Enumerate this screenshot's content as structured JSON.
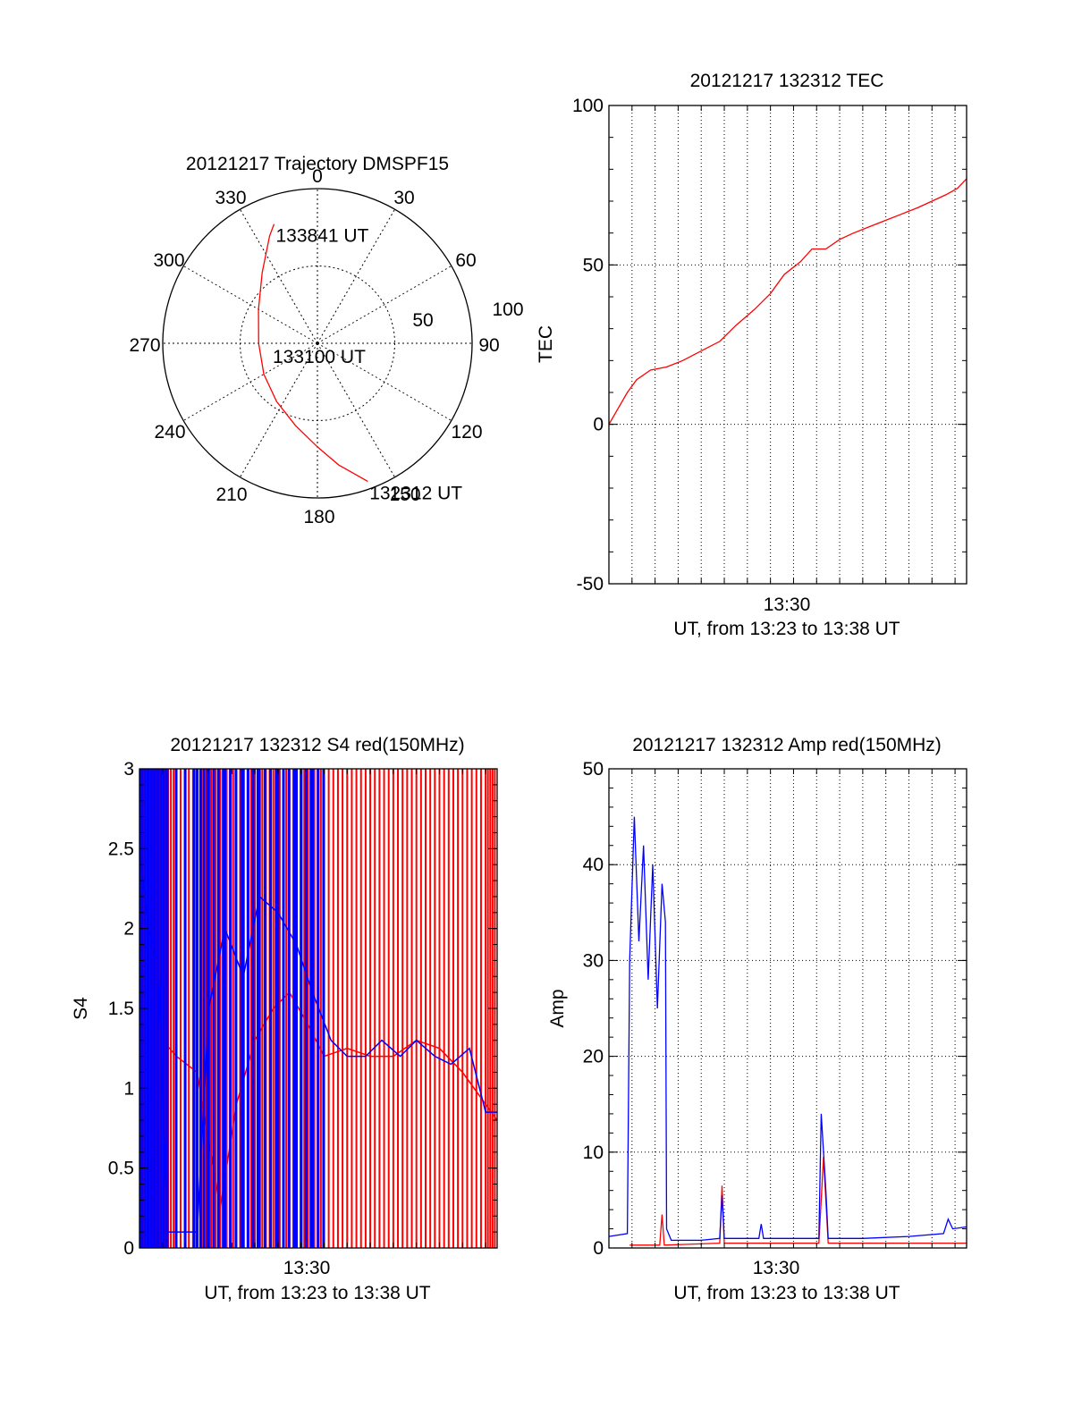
{
  "chart_data": [
    {
      "type": "polar",
      "title": "20121217 Trajectory DMSPF15",
      "azimuth_labels": [
        "0",
        "30",
        "60",
        "90",
        "120",
        "150",
        "180",
        "210",
        "240",
        "270",
        "300",
        "330"
      ],
      "radial_labels": [
        "50",
        "100"
      ],
      "grid": true,
      "series": [
        {
          "color": "#ff0000",
          "points": [
            {
              "az": 160,
              "r": 95
            },
            {
              "az": 170,
              "r": 80
            },
            {
              "az": 180,
              "r": 67
            },
            {
              "az": 195,
              "r": 55
            },
            {
              "az": 215,
              "r": 46
            },
            {
              "az": 240,
              "r": 40
            },
            {
              "az": 270,
              "r": 38
            },
            {
              "az": 300,
              "r": 44
            },
            {
              "az": 322,
              "r": 58
            },
            {
              "az": 336,
              "r": 76
            },
            {
              "az": 340,
              "r": 82
            }
          ]
        }
      ],
      "annotations": [
        {
          "text": "133841 UT",
          "az": 340,
          "r": 82
        },
        {
          "text": "133100 UT",
          "az": 0,
          "r": 0
        },
        {
          "text": "132312 UT",
          "az": 160,
          "r": 95
        }
      ]
    },
    {
      "type": "line",
      "title": "20121217 132312 TEC",
      "xlabel": "UT, from 13:23 to 13:38 UT",
      "ylabel": "TEC",
      "x_tick_labels": [
        "13:30"
      ],
      "xlim_minutes": [
        0,
        15.5
      ],
      "ylim": [
        -50,
        100
      ],
      "y_ticks": [
        -50,
        0,
        50,
        100
      ],
      "grid": true,
      "series": [
        {
          "color": "#ff0000",
          "points": [
            [
              0.0,
              0
            ],
            [
              0.4,
              5
            ],
            [
              0.8,
              10
            ],
            [
              1.2,
              14
            ],
            [
              1.8,
              17
            ],
            [
              2.5,
              18
            ],
            [
              3.2,
              20
            ],
            [
              4.0,
              23
            ],
            [
              4.8,
              26
            ],
            [
              5.5,
              31
            ],
            [
              6.3,
              36
            ],
            [
              7.0,
              41
            ],
            [
              7.6,
              47
            ],
            [
              8.3,
              51
            ],
            [
              8.8,
              55
            ],
            [
              9.4,
              55
            ],
            [
              10.0,
              58
            ],
            [
              10.6,
              60
            ],
            [
              11.3,
              62
            ],
            [
              12.0,
              64
            ],
            [
              12.7,
              66
            ],
            [
              13.4,
              68
            ],
            [
              14.0,
              70
            ],
            [
              14.6,
              72
            ],
            [
              15.1,
              74
            ],
            [
              15.5,
              77
            ]
          ]
        }
      ]
    },
    {
      "type": "line",
      "title": "20121217 132312 S4 red(150MHz)",
      "xlabel": "UT, from 13:23 to 13:38 UT",
      "ylabel": "S4",
      "x_tick_labels": [
        "13:30"
      ],
      "xlim_minutes": [
        0,
        15.5
      ],
      "ylim": [
        0,
        3
      ],
      "y_ticks": [
        0,
        0.5,
        1,
        1.5,
        2,
        2.5,
        3
      ],
      "grid": false,
      "series": [
        {
          "color": "#ff0000",
          "points": [
            [
              0.0,
              2.4
            ],
            [
              0.3,
              1.5
            ],
            [
              0.6,
              1.6
            ],
            [
              1.0,
              1.3
            ],
            [
              1.6,
              1.2
            ],
            [
              2.5,
              1.1
            ],
            [
              3.5,
              0.25
            ],
            [
              4.2,
              0.9
            ],
            [
              5.0,
              1.3
            ],
            [
              5.8,
              1.5
            ],
            [
              6.5,
              1.6
            ],
            [
              7.3,
              1.4
            ],
            [
              8.0,
              1.2
            ],
            [
              9.0,
              1.25
            ],
            [
              10.0,
              1.2
            ],
            [
              11.0,
              1.2
            ],
            [
              12.0,
              1.3
            ],
            [
              13.0,
              1.25
            ],
            [
              14.0,
              1.1
            ],
            [
              15.0,
              0.9
            ],
            [
              15.5,
              0.8
            ]
          ]
        },
        {
          "color": "#0000ff",
          "points": [
            [
              0.0,
              2.5
            ],
            [
              0.4,
              2.0
            ],
            [
              0.8,
              1.8
            ],
            [
              1.2,
              0.1
            ],
            [
              2.5,
              0.1
            ],
            [
              3.0,
              1.5
            ],
            [
              3.7,
              2.0
            ],
            [
              4.5,
              1.7
            ],
            [
              5.2,
              2.2
            ],
            [
              6.0,
              2.1
            ],
            [
              6.8,
              1.9
            ],
            [
              7.5,
              1.6
            ],
            [
              8.3,
              1.3
            ],
            [
              9.0,
              1.2
            ],
            [
              9.8,
              1.2
            ],
            [
              10.5,
              1.3
            ],
            [
              11.3,
              1.2
            ],
            [
              12.0,
              1.3
            ],
            [
              12.8,
              1.2
            ],
            [
              13.5,
              1.15
            ],
            [
              14.3,
              1.25
            ],
            [
              15.0,
              0.85
            ],
            [
              15.5,
              0.85
            ]
          ]
        }
      ]
    },
    {
      "type": "line",
      "title": "20121217 132312 Amp red(150MHz)",
      "xlabel": "UT, from 13:23 to 13:38 UT",
      "ylabel": "Amp",
      "x_tick_labels": [
        "13:30"
      ],
      "xlim_minutes": [
        0,
        15.5
      ],
      "ylim": [
        0,
        50
      ],
      "y_ticks": [
        0,
        10,
        20,
        30,
        40,
        50
      ],
      "grid": true,
      "series": [
        {
          "color": "#ff0000",
          "points": [
            [
              0.9,
              0.3
            ],
            [
              1.5,
              0.3
            ],
            [
              2.2,
              0.3
            ],
            [
              2.3,
              3.5
            ],
            [
              2.4,
              0.3
            ],
            [
              4.8,
              0.5
            ],
            [
              4.9,
              6.5
            ],
            [
              5.0,
              0.5
            ],
            [
              9.1,
              0.5
            ],
            [
              9.3,
              9.5
            ],
            [
              9.5,
              0.5
            ],
            [
              15.5,
              0.5
            ]
          ]
        },
        {
          "color": "#0000ff",
          "points": [
            [
              0.0,
              1.2
            ],
            [
              0.8,
              1.5
            ],
            [
              0.9,
              30
            ],
            [
              1.1,
              45
            ],
            [
              1.3,
              32
            ],
            [
              1.5,
              42
            ],
            [
              1.7,
              28
            ],
            [
              1.9,
              40
            ],
            [
              2.1,
              25
            ],
            [
              2.3,
              38
            ],
            [
              2.45,
              34
            ],
            [
              2.5,
              2
            ],
            [
              2.7,
              0.8
            ],
            [
              4.0,
              0.8
            ],
            [
              4.8,
              1.0
            ],
            [
              4.9,
              5.5
            ],
            [
              5.0,
              1.0
            ],
            [
              6.5,
              1.0
            ],
            [
              6.6,
              2.5
            ],
            [
              6.7,
              1.0
            ],
            [
              9.1,
              1.0
            ],
            [
              9.2,
              14
            ],
            [
              9.4,
              6
            ],
            [
              9.5,
              1.0
            ],
            [
              11.0,
              1.0
            ],
            [
              13.0,
              1.2
            ],
            [
              14.5,
              1.5
            ],
            [
              14.7,
              3.0
            ],
            [
              14.9,
              2.0
            ],
            [
              15.5,
              2.2
            ]
          ]
        }
      ]
    }
  ]
}
